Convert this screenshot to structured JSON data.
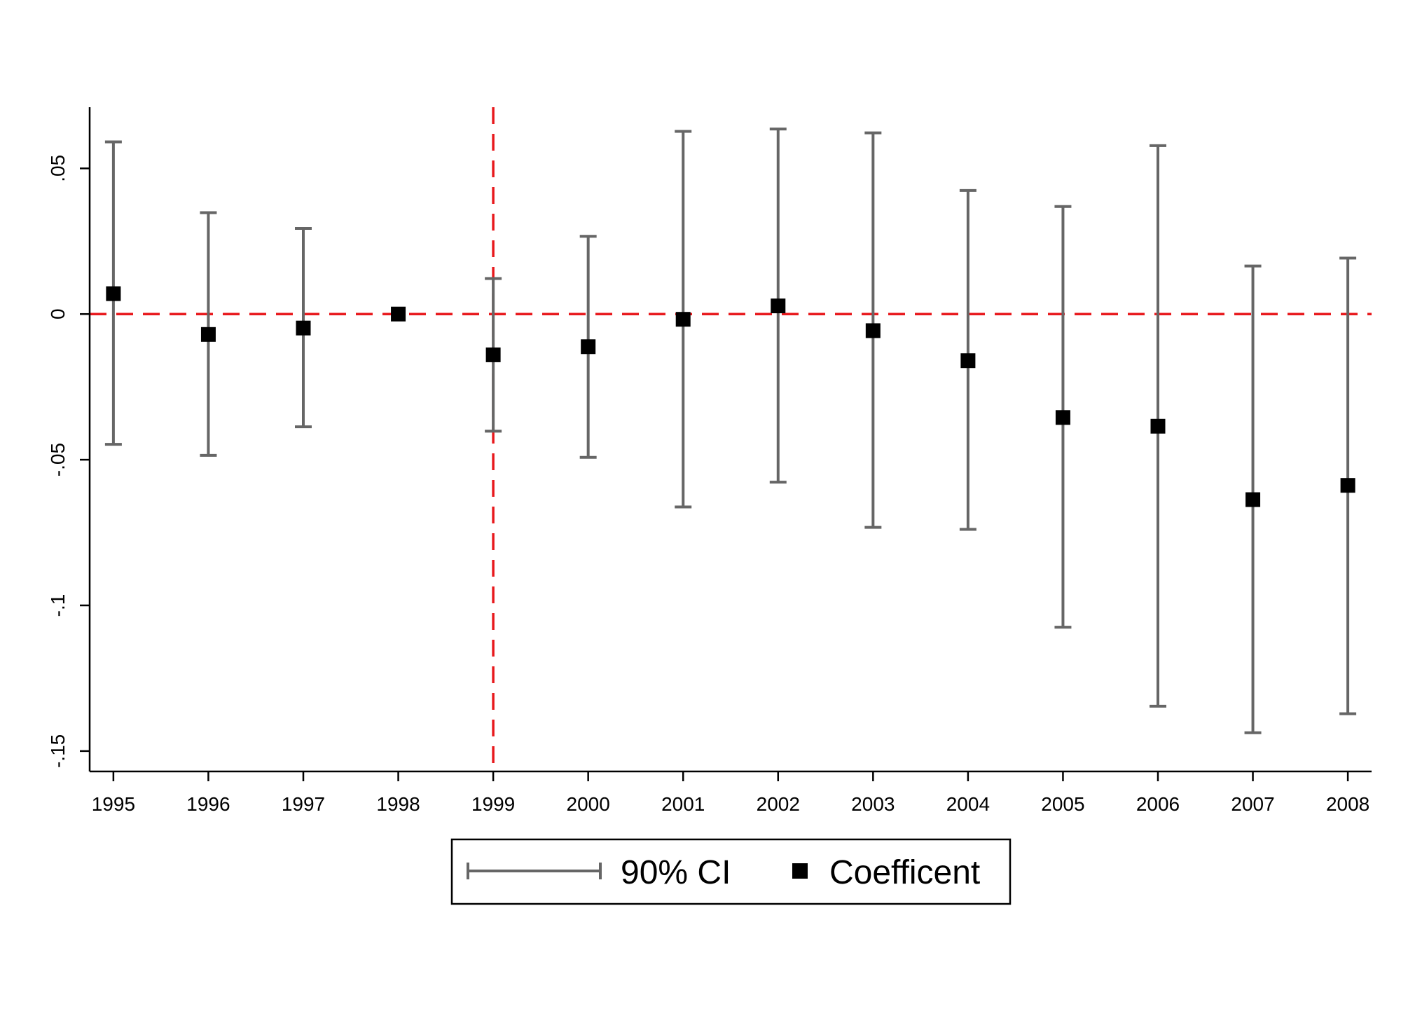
{
  "chart_data": {
    "type": "scatter",
    "title": "",
    "xlabel": "",
    "ylabel": "",
    "x": [
      1995,
      1996,
      1997,
      1998,
      1999,
      2000,
      2001,
      2002,
      2003,
      2004,
      2005,
      2006,
      2007,
      2008
    ],
    "x_tick_labels": [
      "1995",
      "1996",
      "1997",
      "1998",
      "1999",
      "2000",
      "2001",
      "2002",
      "2003",
      "2004",
      "2005",
      "2006",
      "2007",
      "2008"
    ],
    "y_ticks": [
      0.05,
      0,
      -0.05,
      -0.1,
      -0.15
    ],
    "y_tick_labels": [
      ".05",
      "0",
      "-.05",
      "-.1",
      "-.15"
    ],
    "xlim": [
      1994.75,
      2008.25
    ],
    "ylim": [
      -0.157,
      0.071
    ],
    "grid": false,
    "series": [
      {
        "name": "Coefficent",
        "kind": "point",
        "marker": "square",
        "color": "#000000",
        "values": [
          0.007,
          -0.007,
          -0.0048,
          0.0,
          -0.014,
          -0.0112,
          -0.0018,
          0.0028,
          -0.0057,
          -0.016,
          -0.0355,
          -0.0385,
          -0.0637,
          -0.0588
        ]
      },
      {
        "name": "90% CI",
        "kind": "errorbar",
        "color": "#666666",
        "lower": [
          -0.0447,
          -0.0485,
          -0.0387,
          null,
          -0.0402,
          -0.0492,
          -0.0662,
          -0.0577,
          -0.0732,
          -0.0739,
          -0.1075,
          -0.1346,
          -0.1437,
          -0.1372
        ],
        "upper": [
          0.0591,
          0.0348,
          0.0294,
          null,
          0.0122,
          0.0267,
          0.0627,
          0.0635,
          0.0622,
          0.0424,
          0.0369,
          0.0578,
          0.0165,
          0.0192
        ]
      }
    ],
    "reference_lines": [
      {
        "orientation": "horizontal",
        "value": 0,
        "style": "dashed",
        "color": "#e8191d"
      },
      {
        "orientation": "vertical",
        "value": 1999,
        "style": "dashed",
        "color": "#e8191d"
      }
    ],
    "legend": {
      "placement": "bottom-center",
      "entries": [
        {
          "label": "90% CI",
          "symbol": "errorbar"
        },
        {
          "label": "Coefficent",
          "symbol": "square"
        }
      ]
    }
  }
}
